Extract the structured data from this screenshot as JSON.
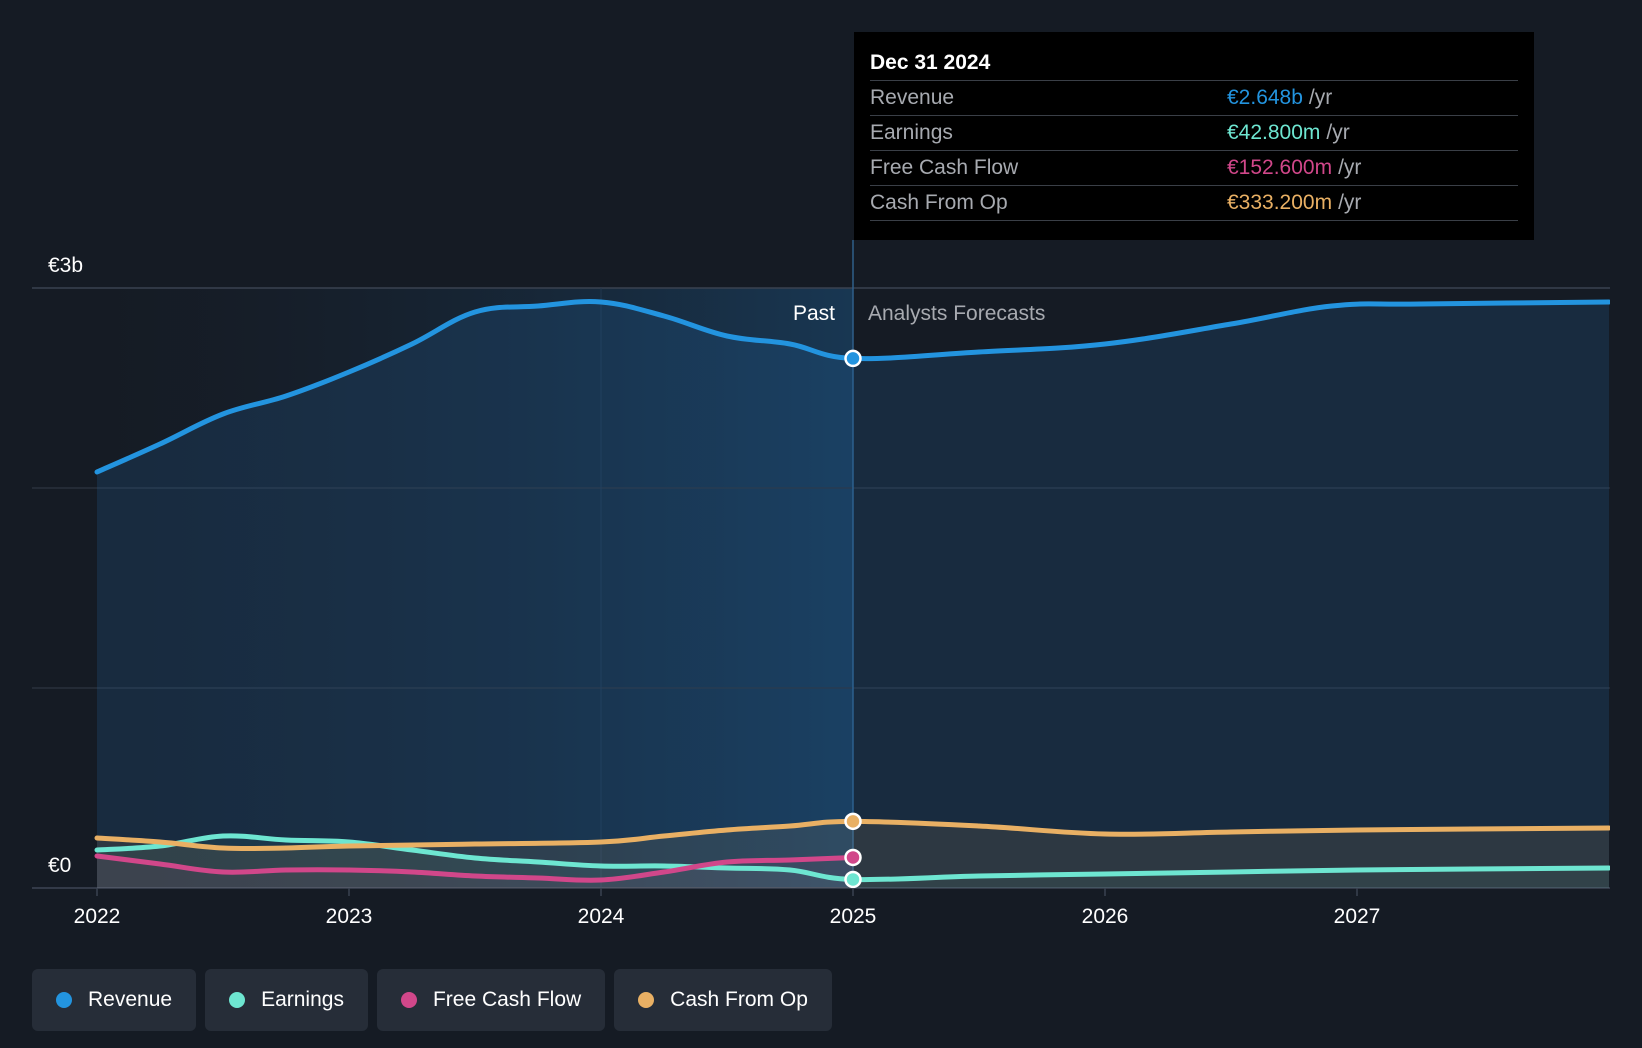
{
  "chart_data": {
    "type": "area",
    "y_axis_labels": [
      "€3b",
      "€0"
    ],
    "ylim": [
      0,
      3.0
    ],
    "xlim": [
      2022,
      2028
    ],
    "x_ticks": [
      "2022",
      "2023",
      "2024",
      "2025",
      "2026",
      "2027"
    ],
    "divider_x": 2025,
    "past_label": "Past",
    "forecast_label": "Analysts Forecasts",
    "series": [
      {
        "name": "Revenue",
        "color": "#2394df",
        "unit": "€b",
        "points": [
          [
            2022.0,
            2.08
          ],
          [
            2022.25,
            2.22
          ],
          [
            2022.5,
            2.37
          ],
          [
            2022.75,
            2.46
          ],
          [
            2023.0,
            2.58
          ],
          [
            2023.25,
            2.72
          ],
          [
            2023.5,
            2.88
          ],
          [
            2023.75,
            2.91
          ],
          [
            2024.0,
            2.93
          ],
          [
            2024.25,
            2.86
          ],
          [
            2024.5,
            2.76
          ],
          [
            2024.75,
            2.72
          ],
          [
            2025.0,
            2.648
          ],
          [
            2025.5,
            2.68
          ],
          [
            2026.0,
            2.72
          ],
          [
            2026.5,
            2.82
          ],
          [
            2026.9,
            2.91
          ],
          [
            2027.25,
            2.92
          ],
          [
            2028.0,
            2.93
          ]
        ]
      },
      {
        "name": "Earnings",
        "color": "#6ee6d1",
        "unit": "€b",
        "points": [
          [
            2022.0,
            0.19
          ],
          [
            2022.25,
            0.21
          ],
          [
            2022.5,
            0.26
          ],
          [
            2022.75,
            0.24
          ],
          [
            2023.0,
            0.23
          ],
          [
            2023.25,
            0.19
          ],
          [
            2023.5,
            0.15
          ],
          [
            2023.75,
            0.13
          ],
          [
            2024.0,
            0.11
          ],
          [
            2024.25,
            0.11
          ],
          [
            2024.5,
            0.1
          ],
          [
            2024.75,
            0.09
          ],
          [
            2025.0,
            0.0428
          ],
          [
            2025.5,
            0.06
          ],
          [
            2026.0,
            0.07
          ],
          [
            2026.5,
            0.08
          ],
          [
            2027.0,
            0.09
          ],
          [
            2028.0,
            0.1
          ]
        ]
      },
      {
        "name": "Free Cash Flow",
        "color": "#d1478a",
        "unit": "€b",
        "points": [
          [
            2022.0,
            0.16
          ],
          [
            2022.25,
            0.12
          ],
          [
            2022.5,
            0.08
          ],
          [
            2022.75,
            0.09
          ],
          [
            2023.0,
            0.09
          ],
          [
            2023.25,
            0.08
          ],
          [
            2023.5,
            0.06
          ],
          [
            2023.75,
            0.05
          ],
          [
            2024.0,
            0.04
          ],
          [
            2024.25,
            0.08
          ],
          [
            2024.5,
            0.13
          ],
          [
            2024.75,
            0.14
          ],
          [
            2025.0,
            0.1526
          ]
        ]
      },
      {
        "name": "Cash From Op",
        "color": "#e9b064",
        "unit": "€b",
        "points": [
          [
            2022.0,
            0.25
          ],
          [
            2022.25,
            0.23
          ],
          [
            2022.5,
            0.2
          ],
          [
            2022.75,
            0.2
          ],
          [
            2023.0,
            0.21
          ],
          [
            2023.5,
            0.22
          ],
          [
            2024.0,
            0.23
          ],
          [
            2024.25,
            0.26
          ],
          [
            2024.5,
            0.29
          ],
          [
            2024.75,
            0.31
          ],
          [
            2025.0,
            0.3332
          ],
          [
            2025.5,
            0.31
          ],
          [
            2026.0,
            0.27
          ],
          [
            2026.5,
            0.28
          ],
          [
            2027.0,
            0.29
          ],
          [
            2028.0,
            0.3
          ]
        ]
      }
    ],
    "markers": [
      {
        "series": "Revenue",
        "x": 2025,
        "y": 2.648
      },
      {
        "series": "Free Cash Flow",
        "x": 2025,
        "y": 0.1526
      },
      {
        "series": "Cash From Op",
        "x": 2025,
        "y": 0.3332
      },
      {
        "series": "Earnings",
        "x": 2025,
        "y": 0.0428
      }
    ]
  },
  "tooltip": {
    "date": "Dec 31 2024",
    "rows": [
      {
        "label": "Revenue",
        "value": "€2.648b",
        "unit": "/yr",
        "color": "#2394df"
      },
      {
        "label": "Earnings",
        "value": "€42.800m",
        "unit": "/yr",
        "color": "#6ee6d1"
      },
      {
        "label": "Free Cash Flow",
        "value": "€152.600m",
        "unit": "/yr",
        "color": "#d1478a"
      },
      {
        "label": "Cash From Op",
        "value": "€333.200m",
        "unit": "/yr",
        "color": "#e9b064"
      }
    ]
  },
  "legend": [
    {
      "label": "Revenue",
      "color": "#2394df"
    },
    {
      "label": "Earnings",
      "color": "#6ee6d1"
    },
    {
      "label": "Free Cash Flow",
      "color": "#d1478a"
    },
    {
      "label": "Cash From Op",
      "color": "#e9b064"
    }
  ]
}
